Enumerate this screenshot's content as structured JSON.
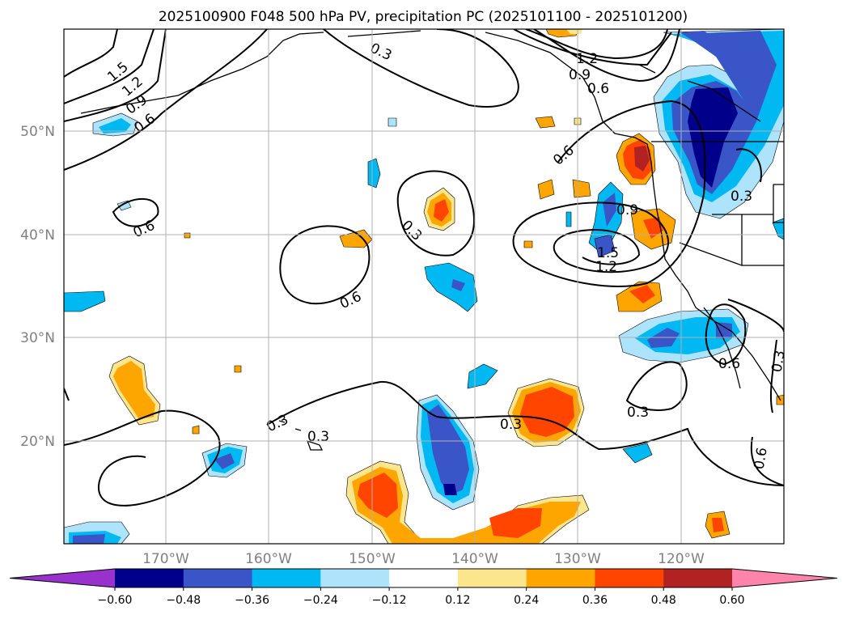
{
  "title": "2025100900 F048 500 hPa PV, precipitation PC (2025101100 - 2025101200)",
  "lat_labels": [
    "50°N",
    "40°N",
    "30°N",
    "20°N"
  ],
  "lon_labels": [
    "170°W",
    "160°W",
    "150°W",
    "140°W",
    "130°W",
    "120°W"
  ],
  "colorbar": {
    "ticks": [
      "−0.60",
      "−0.48",
      "−0.36",
      "−0.24",
      "−0.12",
      "0.12",
      "0.24",
      "0.36",
      "0.48",
      "0.60"
    ],
    "colors": [
      "#9932cc",
      "#00008b",
      "#3a55c8",
      "#00b9f2",
      "#ade4fb",
      "#ffffff",
      "#fbe68e",
      "#ffa500",
      "#ff4500",
      "#b22222",
      "#ff84ab"
    ]
  },
  "contour_labels": [
    "1.5",
    "1.2",
    "0.9",
    "0.6",
    "0.3",
    "0.3",
    "1.2",
    "0.9",
    "0.6",
    "0.6",
    "0.6",
    "0.3",
    "0.6",
    "0.3",
    "0.9",
    "1.5",
    "1.2",
    "0.3",
    "0.3",
    "0.6",
    "0.3",
    "0.3",
    "0.6"
  ],
  "colors": {
    "pale_yellow": "#fbe68e",
    "orange": "#ffa500",
    "orange_red": "#ff4500",
    "dark_red": "#b22222",
    "light_blue": "#ade4fb",
    "cyan": "#00b9f2",
    "royal_blue": "#3a55c8",
    "navy": "#00008b"
  }
}
